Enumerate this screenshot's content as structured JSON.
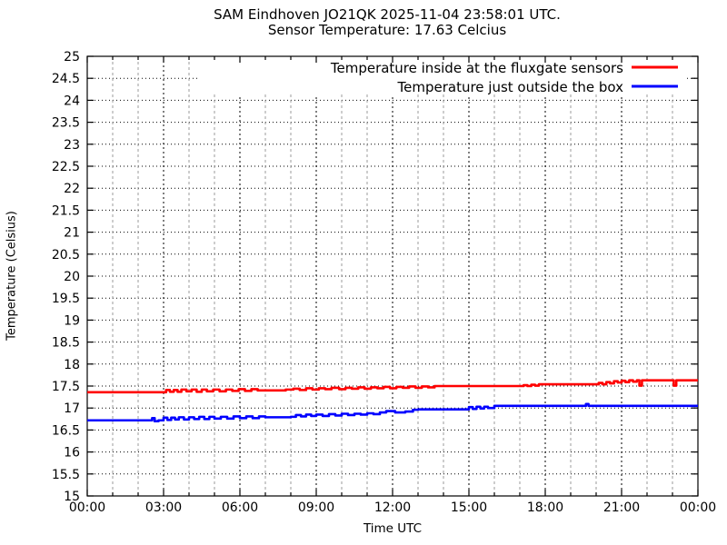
{
  "chart": {
    "title": "SAM Eindhoven JO21QK 2025-11-04 23:58:01 UTC.",
    "subtitle": "Sensor Temperature: 17.63 Celcius"
  },
  "chart_data": {
    "type": "line",
    "title": "SAM Eindhoven JO21QK 2025-11-04 23:58:01 UTC.",
    "subtitle": "Sensor Temperature: 17.63 Celcius",
    "xlabel": "Time UTC",
    "ylabel": "Temperature (Celsius)",
    "xlim_hours": [
      0,
      24
    ],
    "ylim": [
      15,
      25
    ],
    "grid": "on",
    "legend_position": "top-right-inside",
    "x_major_ticks_hours": [
      0,
      3,
      6,
      9,
      12,
      15,
      18,
      21,
      24
    ],
    "x_tick_labels": [
      "00:00",
      "03:00",
      "06:00",
      "09:00",
      "12:00",
      "15:00",
      "18:00",
      "21:00",
      "00:00"
    ],
    "x_minor_step_hours": 1,
    "y_ticks": [
      15,
      15.5,
      16,
      16.5,
      17,
      17.5,
      18,
      18.5,
      19,
      19.5,
      20,
      20.5,
      21,
      21.5,
      22,
      22.5,
      23,
      23.5,
      24,
      24.5,
      25
    ],
    "y_tick_labels": [
      "15",
      "15.5",
      "16",
      "16.5",
      "17",
      "17.5",
      "18",
      "18.5",
      "19",
      "19.5",
      "20",
      "20.5",
      "21",
      "21.5",
      "22",
      "22.5",
      "23",
      "23.5",
      "24",
      "24.5",
      "25"
    ],
    "colors": {
      "axis": "#000000",
      "grid_major": "#000000",
      "grid_minor": "#9b9b9b",
      "background": "#ffffff"
    },
    "series": [
      {
        "name": "Temperature inside at the fluxgate sensors",
        "color": "#ff0000",
        "points": [
          [
            0,
            17.36
          ],
          [
            3.1,
            17.36
          ],
          [
            3.1,
            17.41
          ],
          [
            3.25,
            17.37
          ],
          [
            3.4,
            17.41
          ],
          [
            3.55,
            17.37
          ],
          [
            3.7,
            17.42
          ],
          [
            3.9,
            17.38
          ],
          [
            4.1,
            17.42
          ],
          [
            4.3,
            17.37
          ],
          [
            4.5,
            17.42
          ],
          [
            4.7,
            17.38
          ],
          [
            4.95,
            17.42
          ],
          [
            5.2,
            17.38
          ],
          [
            5.45,
            17.42
          ],
          [
            5.7,
            17.39
          ],
          [
            5.95,
            17.43
          ],
          [
            6.2,
            17.39
          ],
          [
            6.45,
            17.43
          ],
          [
            6.7,
            17.4
          ],
          [
            7.0,
            17.4
          ],
          [
            7.8,
            17.42
          ],
          [
            8.1,
            17.44
          ],
          [
            8.35,
            17.41
          ],
          [
            8.6,
            17.45
          ],
          [
            8.85,
            17.42
          ],
          [
            9.1,
            17.45
          ],
          [
            9.35,
            17.43
          ],
          [
            9.6,
            17.46
          ],
          [
            9.9,
            17.43
          ],
          [
            10.15,
            17.46
          ],
          [
            10.4,
            17.44
          ],
          [
            10.65,
            17.47
          ],
          [
            10.9,
            17.44
          ],
          [
            11.15,
            17.47
          ],
          [
            11.4,
            17.45
          ],
          [
            11.65,
            17.48
          ],
          [
            11.9,
            17.45
          ],
          [
            12.15,
            17.48
          ],
          [
            12.4,
            17.46
          ],
          [
            12.65,
            17.49
          ],
          [
            12.9,
            17.46
          ],
          [
            13.15,
            17.49
          ],
          [
            13.4,
            17.47
          ],
          [
            13.65,
            17.5
          ],
          [
            14.0,
            17.5
          ],
          [
            17.15,
            17.52
          ],
          [
            17.3,
            17.5
          ],
          [
            17.45,
            17.53
          ],
          [
            17.6,
            17.51
          ],
          [
            17.75,
            17.54
          ],
          [
            18.0,
            17.54
          ],
          [
            20.1,
            17.57
          ],
          [
            20.25,
            17.54
          ],
          [
            20.4,
            17.59
          ],
          [
            20.55,
            17.56
          ],
          [
            20.7,
            17.61
          ],
          [
            20.85,
            17.58
          ],
          [
            21.0,
            17.62
          ],
          [
            21.15,
            17.59
          ],
          [
            21.3,
            17.63
          ],
          [
            21.45,
            17.6
          ],
          [
            21.6,
            17.63
          ],
          [
            21.7,
            17.51
          ],
          [
            21.8,
            17.63
          ],
          [
            23.0,
            17.63
          ],
          [
            23.05,
            17.51
          ],
          [
            23.15,
            17.63
          ],
          [
            24,
            17.63
          ]
        ]
      },
      {
        "name": "Temperature just outside the box",
        "color": "#0000ff",
        "points": [
          [
            0,
            16.72
          ],
          [
            2.5,
            16.72
          ],
          [
            2.55,
            16.77
          ],
          [
            2.65,
            16.7
          ],
          [
            2.8,
            16.72
          ],
          [
            3.0,
            16.78
          ],
          [
            3.15,
            16.73
          ],
          [
            3.3,
            16.78
          ],
          [
            3.45,
            16.74
          ],
          [
            3.6,
            16.79
          ],
          [
            3.8,
            16.74
          ],
          [
            4.0,
            16.79
          ],
          [
            4.2,
            16.75
          ],
          [
            4.4,
            16.8
          ],
          [
            4.6,
            16.75
          ],
          [
            4.8,
            16.8
          ],
          [
            5.0,
            16.76
          ],
          [
            5.25,
            16.8
          ],
          [
            5.5,
            16.76
          ],
          [
            5.75,
            16.81
          ],
          [
            6.0,
            16.77
          ],
          [
            6.25,
            16.81
          ],
          [
            6.5,
            16.77
          ],
          [
            6.75,
            16.81
          ],
          [
            7.0,
            16.79
          ],
          [
            8.0,
            16.8
          ],
          [
            8.2,
            16.84
          ],
          [
            8.4,
            16.81
          ],
          [
            8.6,
            16.85
          ],
          [
            8.8,
            16.82
          ],
          [
            9.0,
            16.85
          ],
          [
            9.25,
            16.82
          ],
          [
            9.5,
            16.86
          ],
          [
            9.75,
            16.83
          ],
          [
            10.0,
            16.87
          ],
          [
            10.25,
            16.84
          ],
          [
            10.5,
            16.87
          ],
          [
            10.75,
            16.85
          ],
          [
            11.0,
            16.88
          ],
          [
            11.25,
            16.86
          ],
          [
            11.5,
            16.9
          ],
          [
            11.75,
            16.93
          ],
          [
            12.1,
            16.9
          ],
          [
            12.5,
            16.92
          ],
          [
            12.8,
            16.96
          ],
          [
            13.0,
            16.97
          ],
          [
            14.8,
            16.97
          ],
          [
            15.0,
            17.02
          ],
          [
            15.15,
            16.98
          ],
          [
            15.3,
            17.03
          ],
          [
            15.45,
            16.99
          ],
          [
            15.6,
            17.03
          ],
          [
            15.75,
            17.0
          ],
          [
            16.0,
            17.05
          ],
          [
            19.55,
            17.05
          ],
          [
            19.6,
            17.09
          ],
          [
            19.7,
            17.05
          ],
          [
            24,
            17.05
          ]
        ]
      }
    ]
  }
}
